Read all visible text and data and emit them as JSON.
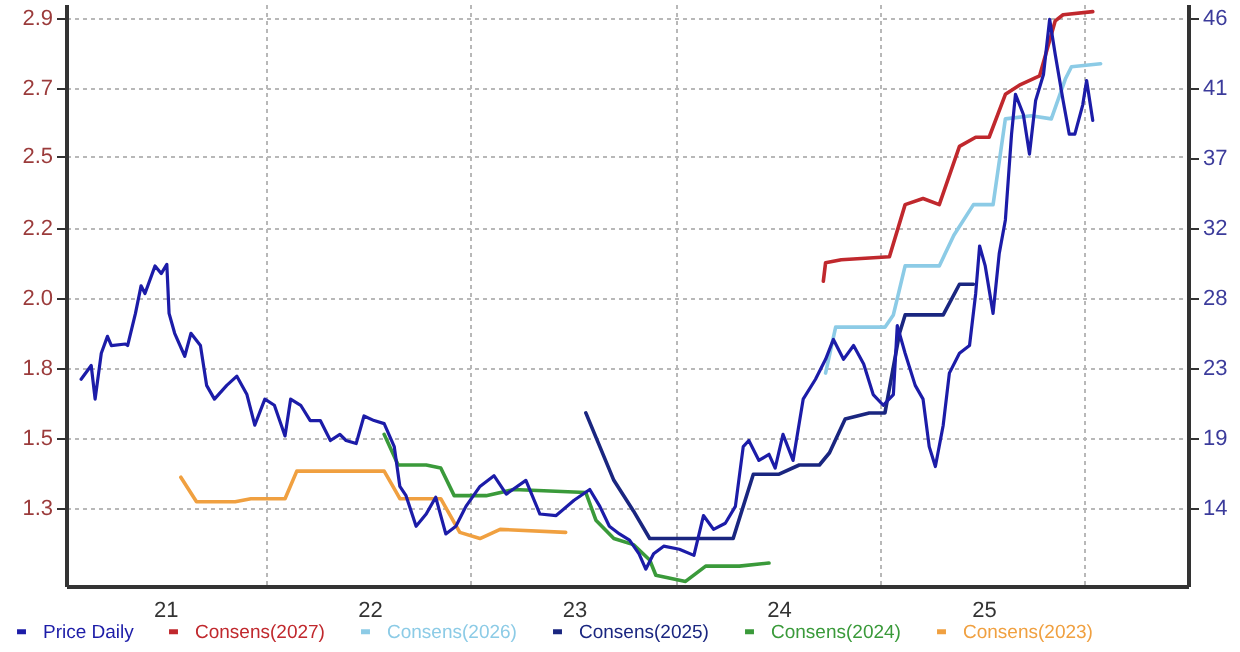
{
  "chart_data": {
    "type": "line",
    "legend": "bottom",
    "grid": true,
    "xlim": [
      "2020-07-08",
      "2026-01-01"
    ],
    "xticks": [
      {
        "value": "2021-01-01",
        "label": "21"
      },
      {
        "value": "2021-07-01",
        "label": null
      },
      {
        "value": "2022-01-01",
        "label": "22"
      },
      {
        "value": "2022-07-01",
        "label": null
      },
      {
        "value": "2023-01-01",
        "label": "23"
      },
      {
        "value": "2023-07-01",
        "label": null
      },
      {
        "value": "2024-01-01",
        "label": "24"
      },
      {
        "value": "2024-07-01",
        "label": null
      },
      {
        "value": "2025-01-01",
        "label": "25"
      },
      {
        "value": "2025-07-01",
        "label": null
      }
    ],
    "ylim": [
      1.045,
      2.945
    ],
    "yticks": [
      {
        "value": 1.3,
        "label": "1.3"
      },
      {
        "value": 1.5286,
        "label": "1.5"
      },
      {
        "value": 1.7571,
        "label": "1.8"
      },
      {
        "value": 1.9857,
        "label": "2.0"
      },
      {
        "value": 2.2143,
        "label": "2.2"
      },
      {
        "value": 2.45,
        "label": "2.5"
      },
      {
        "value": 2.6714,
        "label": "2.7"
      },
      {
        "value": 2.9,
        "label": "2.9"
      }
    ],
    "y2lim": [
      8.9,
      46.9
    ],
    "y2ticks": [
      {
        "value": 14,
        "label": "14"
      },
      {
        "value": 18.571,
        "label": "19"
      },
      {
        "value": 23.143,
        "label": "23"
      },
      {
        "value": 27.714,
        "label": "28"
      },
      {
        "value": 32.286,
        "label": "32"
      },
      {
        "value": 36.857,
        "label": "37"
      },
      {
        "value": 41.429,
        "label": "41"
      },
      {
        "value": 46,
        "label": "46"
      }
    ],
    "series": [
      {
        "name": "Price Daily",
        "color": "#1c1ca8",
        "axis": "y2",
        "x": [
          "2020-08-04",
          "2020-08-22",
          "2020-08-29",
          "2020-09-09",
          "2020-09-20",
          "2020-09-27",
          "2020-10-22",
          "2020-10-26",
          "2020-11-09",
          "2020-11-19",
          "2020-11-26",
          "2020-12-14",
          "2020-12-25",
          "2021-01-04",
          "2021-01-08",
          "2021-01-18",
          "2021-02-05",
          "2021-02-16",
          "2021-03-05",
          "2021-03-16",
          "2021-03-30",
          "2021-04-21",
          "2021-05-09",
          "2021-05-27",
          "2021-06-10",
          "2021-06-28",
          "2021-07-15",
          "2021-08-03",
          "2021-08-13",
          "2021-08-31",
          "2021-09-17",
          "2021-10-05",
          "2021-10-23",
          "2021-11-09",
          "2021-11-20",
          "2021-12-08",
          "2021-12-22",
          "2022-01-09",
          "2022-01-27",
          "2022-02-14",
          "2022-02-24",
          "2022-03-07",
          "2022-03-25",
          "2022-04-12",
          "2022-04-29",
          "2022-05-17",
          "2022-06-04",
          "2022-06-22",
          "2022-07-17",
          "2022-08-11",
          "2022-09-02",
          "2022-10-07",
          "2022-11-01",
          "2022-11-30",
          "2023-01-01",
          "2023-01-29",
          "2023-02-16",
          "2023-03-05",
          "2023-03-23",
          "2023-04-10",
          "2023-04-27",
          "2023-05-09",
          "2023-05-23",
          "2023-06-10",
          "2023-07-08",
          "2023-08-03",
          "2023-08-20",
          "2023-09-07",
          "2023-09-28",
          "2023-10-16",
          "2023-10-30",
          "2023-11-09",
          "2023-11-27",
          "2023-12-15",
          "2023-12-26",
          "2024-01-09",
          "2024-01-27",
          "2024-02-14",
          "2024-03-07",
          "2024-03-25",
          "2024-04-08",
          "2024-04-26",
          "2024-05-14",
          "2024-06-01",
          "2024-06-18",
          "2024-07-06",
          "2024-07-24",
          "2024-07-31",
          "2024-08-14",
          "2024-09-01",
          "2024-09-15",
          "2024-09-26",
          "2024-10-07",
          "2024-10-21",
          "2024-11-01",
          "2024-11-19",
          "2024-12-07",
          "2024-12-18",
          "2024-12-25",
          "2025-01-04",
          "2025-01-18",
          "2025-01-29",
          "2025-02-09",
          "2025-02-20",
          "2025-02-27",
          "2025-03-13",
          "2025-03-24",
          "2025-04-04",
          "2025-04-18",
          "2025-04-29",
          "2025-05-09",
          "2025-05-23",
          "2025-06-03",
          "2025-06-13",
          "2025-06-27",
          "2025-07-04",
          "2025-07-15"
        ],
        "values": [
          22.4,
          23.3,
          21.1,
          24.1,
          25.2,
          24.6,
          24.7,
          24.6,
          26.7,
          28.5,
          28.0,
          29.8,
          29.3,
          29.9,
          26.7,
          25.4,
          23.9,
          25.4,
          24.6,
          22.0,
          21.1,
          22.0,
          22.6,
          21.4,
          19.4,
          21.1,
          20.7,
          18.7,
          21.1,
          20.7,
          19.7,
          19.7,
          18.4,
          18.8,
          18.4,
          18.2,
          20.0,
          19.7,
          19.5,
          18.0,
          15.4,
          14.8,
          12.8,
          13.6,
          14.7,
          12.3,
          12.8,
          14.1,
          15.4,
          16.1,
          14.9,
          15.8,
          13.6,
          13.5,
          14.5,
          15.2,
          14.1,
          12.8,
          12.3,
          11.9,
          11.0,
          10.0,
          11.0,
          11.5,
          11.3,
          10.9,
          13.5,
          12.6,
          13.0,
          14.1,
          18.0,
          18.4,
          17.1,
          17.5,
          16.6,
          18.8,
          17.1,
          21.1,
          22.4,
          23.7,
          25.0,
          23.7,
          24.6,
          23.4,
          21.4,
          20.7,
          21.4,
          25.9,
          24.1,
          22.0,
          21.1,
          18.0,
          16.7,
          19.4,
          22.8,
          24.1,
          24.6,
          28.0,
          31.1,
          29.8,
          26.7,
          30.6,
          32.8,
          38.4,
          41.0,
          39.7,
          37.1,
          40.6,
          42.3,
          45.9,
          43.6,
          40.6,
          38.4,
          38.4,
          40.3,
          41.9,
          39.3
        ]
      },
      {
        "name": "Consens(2027)",
        "color": "#c0282d",
        "x": [
          "2024-03-21",
          "2024-03-25",
          "2024-04-22",
          "2024-07-17",
          "2024-08-14",
          "2024-09-15",
          "2024-10-14",
          "2024-11-19",
          "2024-12-18",
          "2025-01-11",
          "2025-02-09",
          "2025-03-06",
          "2025-04-11",
          "2025-05-09",
          "2025-05-23",
          "2025-07-15"
        ],
        "values": [
          2.04,
          2.1,
          2.11,
          2.12,
          2.29,
          2.31,
          2.29,
          2.48,
          2.51,
          2.51,
          2.65,
          2.68,
          2.71,
          2.89,
          2.91,
          2.92
        ]
      },
      {
        "name": "Consens(2026)",
        "color": "#8ccbe6",
        "x": [
          "2024-03-25",
          "2024-04-12",
          "2024-05-14",
          "2024-07-09",
          "2024-07-24",
          "2024-08-14",
          "2024-10-14",
          "2024-11-09",
          "2024-12-14",
          "2025-01-18",
          "2025-02-09",
          "2025-03-27",
          "2025-05-02",
          "2025-05-27",
          "2025-06-07",
          "2025-07-29"
        ],
        "values": [
          1.74,
          1.89,
          1.89,
          1.89,
          1.93,
          2.09,
          2.09,
          2.19,
          2.29,
          2.29,
          2.57,
          2.58,
          2.57,
          2.7,
          2.74,
          2.75
        ]
      },
      {
        "name": "Consens(2025)",
        "color": "#1a2680",
        "x": [
          "2023-01-22",
          "2023-03-13",
          "2023-04-17",
          "2023-05-16",
          "2023-08-03",
          "2023-10-12",
          "2023-11-17",
          "2024-01-02",
          "2024-02-07",
          "2024-03-14",
          "2024-04-01",
          "2024-04-29",
          "2024-06-11",
          "2024-07-09",
          "2024-08-04",
          "2024-08-14",
          "2024-10-21",
          "2024-11-19",
          "2024-12-14"
        ],
        "values": [
          1.61,
          1.39,
          1.29,
          1.2,
          1.2,
          1.2,
          1.41,
          1.41,
          1.44,
          1.44,
          1.48,
          1.59,
          1.61,
          1.61,
          1.87,
          1.93,
          1.93,
          2.03,
          2.03
        ]
      },
      {
        "name": "Consens(2024)",
        "color": "#3a9a3a",
        "x": [
          "2022-01-27",
          "2022-02-21",
          "2022-04-12",
          "2022-05-08",
          "2022-06-01",
          "2022-07-28",
          "2022-09-15",
          "2023-01-22",
          "2023-02-09",
          "2023-03-13",
          "2023-04-17",
          "2023-05-16",
          "2023-05-27",
          "2023-07-19",
          "2023-08-24",
          "2023-10-23",
          "2023-12-15"
        ],
        "values": [
          1.54,
          1.44,
          1.44,
          1.43,
          1.34,
          1.34,
          1.36,
          1.35,
          1.26,
          1.2,
          1.18,
          1.13,
          1.08,
          1.06,
          1.11,
          1.11,
          1.12
        ]
      },
      {
        "name": "Consens(2023)",
        "color": "#f0a040",
        "x": [
          "2021-01-29",
          "2021-02-26",
          "2021-05-06",
          "2021-06-03",
          "2021-08-03",
          "2021-08-24",
          "2022-01-27",
          "2022-02-18",
          "2022-02-24",
          "2022-05-08",
          "2022-06-11",
          "2022-07-17",
          "2022-08-22",
          "2022-12-17"
        ],
        "values": [
          1.4,
          1.32,
          1.32,
          1.33,
          1.33,
          1.42,
          1.42,
          1.35,
          1.33,
          1.33,
          1.22,
          1.2,
          1.23,
          1.22
        ]
      }
    ]
  }
}
